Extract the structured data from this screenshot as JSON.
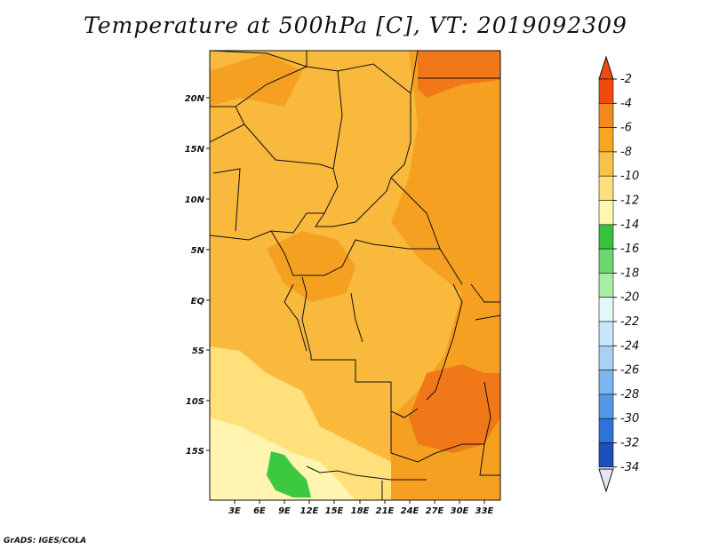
{
  "title": "Temperature at 500hPa [C], VT: 2019092309",
  "credit": "GrADS: IGES/COLA",
  "map": {
    "lat_ticks": [
      "20N",
      "15N",
      "10N",
      "5N",
      "EQ",
      "5S",
      "10S",
      "15S"
    ],
    "lon_ticks": [
      "3E",
      "6E",
      "9E",
      "12E",
      "15E",
      "18E",
      "21E",
      "24E",
      "27E",
      "30E",
      "33E"
    ],
    "colors": {
      "lt_-10": "#fff4b0",
      "-10_-8": "#ffe07a",
      "-8_-6": "#f9b93c",
      "-6_-4": "#f5a020",
      "-4_-2": "#f07818",
      "green_-14_-12": "#3cc840"
    }
  },
  "colorbar": {
    "labels": [
      "-2",
      "-4",
      "-6",
      "-8",
      "-10",
      "-12",
      "-14",
      "-16",
      "-18",
      "-20",
      "-22",
      "-24",
      "-26",
      "-28",
      "-30",
      "-32",
      "-34"
    ],
    "colors": [
      "#f04a10",
      "#f58a1a",
      "#f5a623",
      "#f9c24a",
      "#fde07a",
      "#fff6b0",
      "#36c23a",
      "#6ad86e",
      "#a8eda6",
      "#e4f8f8",
      "#c8e6fa",
      "#aad0f5",
      "#7db6ef",
      "#5598e6",
      "#2e73d8",
      "#1c4fbf",
      "#122f95",
      "#0a1a6a"
    ],
    "top_triangle_color": "#f04a10",
    "bottom_triangle_color": "#e8e4f8"
  }
}
